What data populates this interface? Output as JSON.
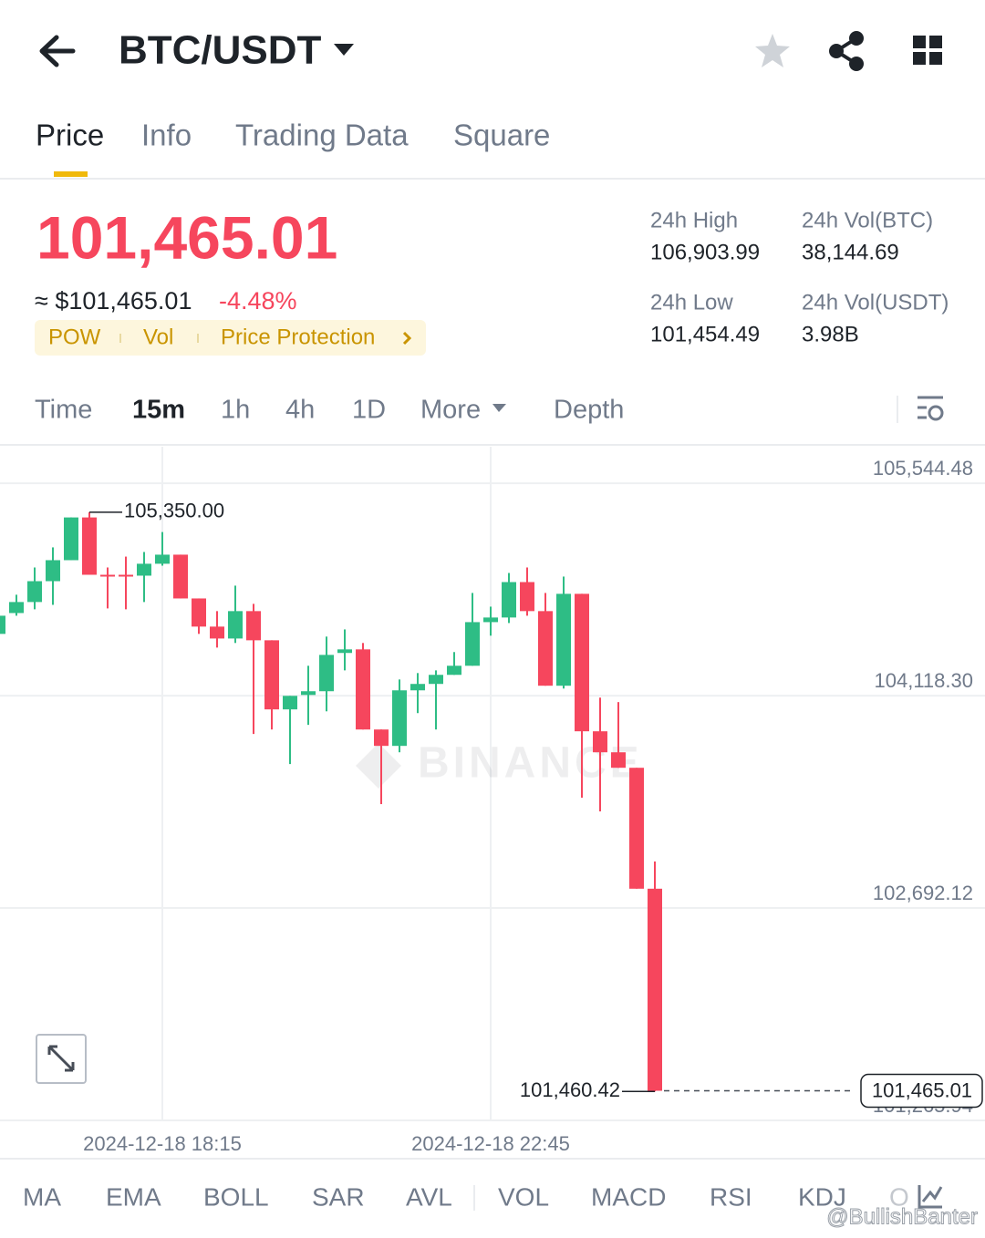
{
  "header": {
    "title": "BTC/USDT"
  },
  "tabs": {
    "items": [
      "Price",
      "Info",
      "Trading Data",
      "Square"
    ],
    "active": 0
  },
  "ticker": {
    "price": "101,465.01",
    "approx": "≈ $101,465.01",
    "change": "-4.48%",
    "tags": [
      "POW",
      "Vol",
      "Price Protection"
    ],
    "stats": [
      {
        "label": "24h High",
        "value": "106,903.99"
      },
      {
        "label": "24h Vol(BTC)",
        "value": "38,144.69"
      },
      {
        "label": "24h Low",
        "value": "101,454.49"
      },
      {
        "label": "24h Vol(USDT)",
        "value": "3.98B"
      }
    ]
  },
  "timeframes": {
    "items": [
      "Time",
      "15m",
      "1h",
      "4h",
      "1D",
      "More",
      "Depth"
    ],
    "active": 1
  },
  "indicators": [
    "MA",
    "EMA",
    "BOLL",
    "SAR",
    "AVL",
    "VOL",
    "MACD",
    "RSI",
    "KDJ",
    "O"
  ],
  "watermark": "BINANCE",
  "credit": "@BullishBanter",
  "chart_data": {
    "type": "candlestick",
    "categories": [
      null,
      null,
      null,
      null,
      null,
      null,
      null,
      null,
      null,
      "2024-12-18 18:15",
      null,
      null,
      null,
      null,
      null,
      null,
      null,
      null,
      null,
      null,
      null,
      null,
      null,
      null,
      null,
      null,
      null,
      "2024-12-18 22:45",
      null,
      null,
      null,
      null,
      null,
      null,
      null,
      null,
      null
    ],
    "open": [
      104533,
      104673,
      104747,
      104887,
      105028,
      105315,
      104930,
      104930,
      104924,
      105004,
      105065,
      104771,
      104582,
      104502,
      104686,
      104490,
      104026,
      104123,
      104148,
      104405,
      104429,
      103891,
      103781,
      104154,
      104197,
      104258,
      104319,
      104612,
      104643,
      104881,
      104686,
      104185,
      104802,
      103879,
      103738,
      103634,
      102822
    ],
    "high": [
      104686,
      104796,
      104979,
      105114,
      105315,
      105350,
      104979,
      105052,
      105083,
      105217,
      105065,
      104771,
      104686,
      104857,
      104735,
      104490,
      104117,
      104319,
      104515,
      104563,
      104472,
      103891,
      104227,
      104270,
      104288,
      104411,
      104808,
      104716,
      104942,
      104979,
      104808,
      104918,
      104802,
      104105,
      104075,
      103634,
      103005
    ],
    "low": [
      104533,
      104655,
      104698,
      104728,
      105028,
      104930,
      104704,
      104698,
      104747,
      104991,
      104771,
      104533,
      104441,
      104472,
      103861,
      103891,
      103659,
      103922,
      104013,
      104288,
      103891,
      103390,
      103738,
      104001,
      103891,
      104258,
      104319,
      104521,
      104606,
      104655,
      104185,
      104166,
      103433,
      103341,
      103634,
      102822,
      101460.42
    ],
    "close": [
      104655,
      104747,
      104887,
      105028,
      105315,
      104930,
      104918,
      104918,
      105004,
      105065,
      104771,
      104582,
      104502,
      104686,
      104490,
      104026,
      104117,
      104148,
      104392,
      104429,
      103891,
      103781,
      104154,
      104197,
      104258,
      104319,
      104612,
      104643,
      104881,
      104686,
      104185,
      104802,
      103879,
      103738,
      103634,
      102822,
      101465.01
    ],
    "up_color": "#2ebd85",
    "down_color": "#f6465d",
    "ylim": [
      101260,
      105790
    ],
    "yticks": [
      {
        "value": 105544.48,
        "label": "105,544.48"
      },
      {
        "value": 104118.3,
        "label": "104,118.30"
      },
      {
        "value": 102692.12,
        "label": "102,692.12"
      },
      {
        "value": 101265.94,
        "label": "101,265.94"
      }
    ],
    "grid": true,
    "annotations": {
      "high": "105,350.00",
      "low": "101,460.42",
      "last": "101,465.01"
    }
  }
}
